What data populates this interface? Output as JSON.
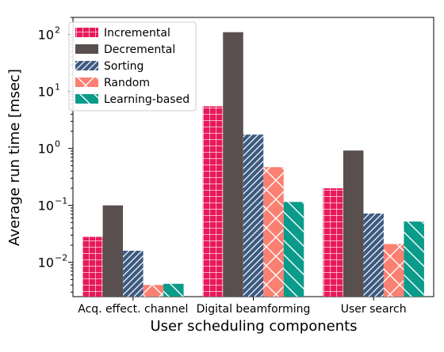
{
  "chart_data": {
    "type": "bar",
    "xlabel": "User scheduling components",
    "ylabel": "Average run time [msec]",
    "yscale": "log",
    "ylim": [
      0.0025,
      200
    ],
    "yticks": [
      {
        "value": 0.01,
        "base": "10",
        "exp": "−2"
      },
      {
        "value": 0.1,
        "base": "10",
        "exp": "−1"
      },
      {
        "value": 1,
        "base": "10",
        "exp": "0"
      },
      {
        "value": 10,
        "base": "10",
        "exp": "1"
      },
      {
        "value": 100,
        "base": "10",
        "exp": "2"
      }
    ],
    "categories": [
      "Acq. effect. channel",
      "Digital beamforming",
      "User search"
    ],
    "legend_position": "upper left",
    "series": [
      {
        "name": "Incremental",
        "color": "#e8195a",
        "pattern": "grid",
        "values": [
          0.028,
          5.5,
          0.2
        ]
      },
      {
        "name": "Decremental",
        "color": "#5a4f4f",
        "pattern": "none",
        "values": [
          0.1,
          110,
          0.92
        ]
      },
      {
        "name": "Sorting",
        "color": "#3d5a80",
        "pattern": "diag-fwd",
        "values": [
          0.016,
          1.75,
          0.072
        ]
      },
      {
        "name": "Random",
        "color": "#fa8072",
        "pattern": "cross",
        "values": [
          0.004,
          0.47,
          0.021
        ]
      },
      {
        "name": "Learning-based",
        "color": "#0b9b8a",
        "pattern": "diag-back",
        "values": [
          0.0042,
          0.115,
          0.052
        ]
      }
    ]
  }
}
